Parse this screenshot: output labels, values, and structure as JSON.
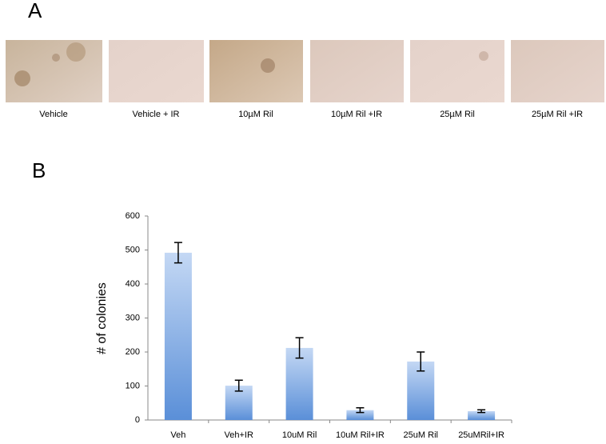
{
  "panel_a": {
    "label": "A",
    "captions": [
      "Vehicle",
      "Vehicle + IR",
      "10µM Ril",
      "10µM Ril +IR",
      "25µM Ril",
      "25µM Ril +IR"
    ]
  },
  "panel_b": {
    "label": "B"
  },
  "chart_data": {
    "type": "bar",
    "ylabel": "# of colonies",
    "categories": [
      "Veh",
      "Veh+IR",
      "10uM Ril",
      "10uM Ril+IR",
      "25uM Ril",
      "25uMRil+IR"
    ],
    "values": [
      492,
      101,
      212,
      29,
      172,
      26
    ],
    "errors": [
      30,
      16,
      30,
      7,
      28,
      4
    ],
    "ylim": [
      0,
      600
    ],
    "yticks": [
      0,
      100,
      200,
      300,
      400,
      500,
      600
    ],
    "grid": false
  }
}
